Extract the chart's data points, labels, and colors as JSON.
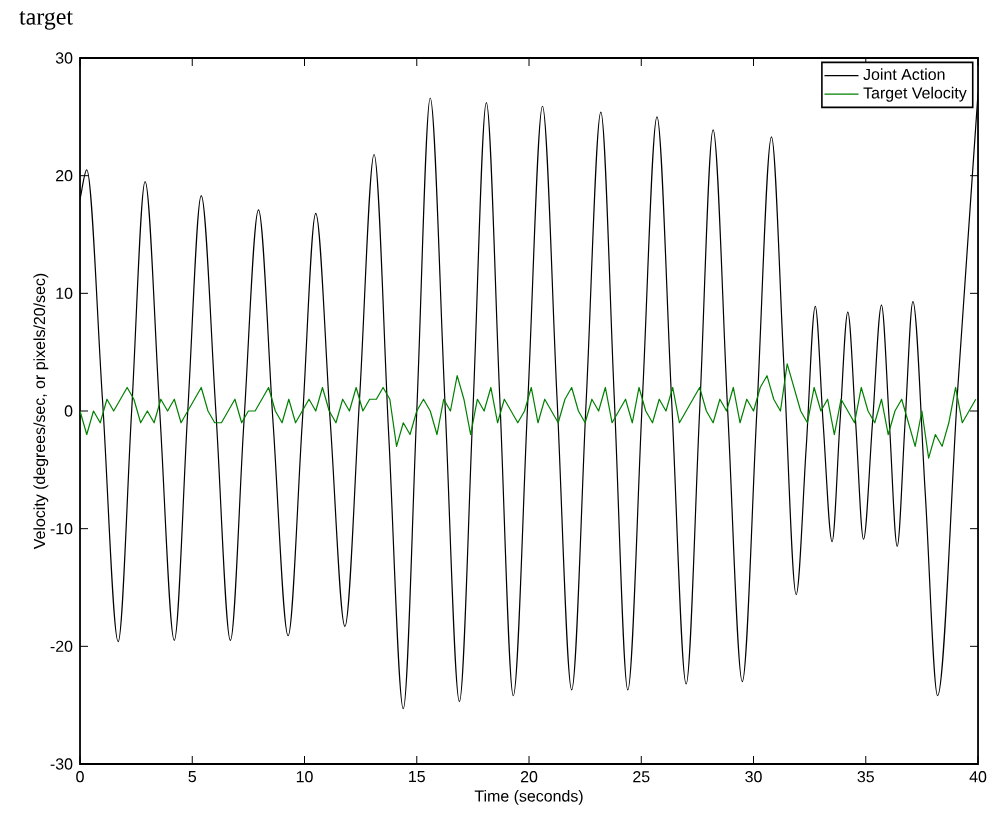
{
  "chart_data": {
    "type": "line",
    "xlabel": "Time (seconds)",
    "ylabel": "Velocity (degrees/sec, or pixels/20/sec)",
    "annotations": [
      "target"
    ],
    "xlim": [
      0,
      40
    ],
    "ylim": [
      -30,
      30
    ],
    "xticks": [
      0,
      5,
      10,
      15,
      20,
      25,
      30,
      35,
      40
    ],
    "yticks": [
      -30,
      -20,
      -10,
      0,
      10,
      20,
      30
    ],
    "grid": false,
    "legend": "top right",
    "line_style": "solid",
    "marker": "none",
    "series": [
      {
        "name": "Joint Action",
        "color": "#000000",
        "x": [
          0,
          0.3,
          1.0,
          1.7,
          2.3,
          2.9,
          3.55,
          4.2,
          4.8,
          5.4,
          6.05,
          6.7,
          7.3,
          7.95,
          8.6,
          9.27,
          9.9,
          10.5,
          11.15,
          11.8,
          12.45,
          13.1,
          13.75,
          14.4,
          15.0,
          15.6,
          16.25,
          16.9,
          17.5,
          18.1,
          18.7,
          19.3,
          19.95,
          20.6,
          21.25,
          21.9,
          22.55,
          23.2,
          23.8,
          24.4,
          25.05,
          25.7,
          26.35,
          27.0,
          27.6,
          28.2,
          28.85,
          29.5,
          30.15,
          30.8,
          31.35,
          31.9,
          32.35,
          32.75,
          33.1,
          33.5,
          33.85,
          34.2,
          34.55,
          34.9,
          35.3,
          35.7,
          36.05,
          36.4,
          36.75,
          37.1,
          37.65,
          38.2,
          39.1,
          40.0
        ],
        "values": [
          18,
          20.5,
          1,
          -19.6,
          0,
          19.5,
          0,
          -19.5,
          0,
          18.3,
          0,
          -19.5,
          -1,
          17.1,
          -1,
          -19.1,
          -1,
          16.8,
          -1,
          -18.3,
          1,
          21.8,
          -2,
          -25.3,
          0,
          26.6,
          1,
          -24.7,
          0,
          26.2,
          1,
          -24.2,
          1,
          25.9,
          1,
          -23.7,
          1,
          25.4,
          1,
          -23.7,
          1,
          25.0,
          1,
          -23.2,
          0,
          23.9,
          0,
          -23.0,
          0,
          23.3,
          4,
          -15.6,
          -3,
          8.9,
          -1,
          -11.1,
          -1,
          8.4,
          -1,
          -10.9,
          -1,
          9.0,
          -1,
          -11.5,
          -1,
          9.3,
          -7,
          -24.2,
          2,
          27
        ]
      },
      {
        "name": "Target Velocity",
        "color": "#008000",
        "x": [
          0,
          0.3,
          0.6,
          0.9,
          1.2,
          1.5,
          1.8,
          2.1,
          2.4,
          2.7,
          3.0,
          3.3,
          3.6,
          3.9,
          4.2,
          4.5,
          4.8,
          5.1,
          5.4,
          5.7,
          6.0,
          6.3,
          6.6,
          6.9,
          7.2,
          7.5,
          7.8,
          8.1,
          8.4,
          8.7,
          9.0,
          9.3,
          9.6,
          9.9,
          10.2,
          10.5,
          10.8,
          11.1,
          11.4,
          11.7,
          12.0,
          12.3,
          12.6,
          12.9,
          13.2,
          13.5,
          13.8,
          14.1,
          14.4,
          14.7,
          15.0,
          15.3,
          15.6,
          15.9,
          16.2,
          16.5,
          16.8,
          17.1,
          17.4,
          17.7,
          18.0,
          18.3,
          18.6,
          18.9,
          19.2,
          19.5,
          19.8,
          20.1,
          20.4,
          20.7,
          21.0,
          21.3,
          21.6,
          21.9,
          22.2,
          22.5,
          22.8,
          23.1,
          23.4,
          23.7,
          24.0,
          24.3,
          24.6,
          24.9,
          25.2,
          25.5,
          25.8,
          26.1,
          26.4,
          26.7,
          27.0,
          27.3,
          27.6,
          27.9,
          28.2,
          28.5,
          28.8,
          29.1,
          29.4,
          29.7,
          30.0,
          30.3,
          30.6,
          30.9,
          31.2,
          31.5,
          31.8,
          32.1,
          32.4,
          32.7,
          33.0,
          33.3,
          33.6,
          33.9,
          34.2,
          34.5,
          34.8,
          35.1,
          35.4,
          35.7,
          36.0,
          36.3,
          36.6,
          36.9,
          37.2,
          37.5,
          37.8,
          38.1,
          38.4,
          38.7,
          39.0,
          39.3,
          39.6,
          39.9
        ],
        "values": [
          0,
          -2,
          0,
          -1,
          1,
          0,
          1,
          2,
          1,
          -1,
          0,
          -1,
          1,
          0,
          1,
          -1,
          0,
          1,
          2,
          0,
          -1,
          -1,
          0,
          1,
          -1,
          0,
          0,
          1,
          2,
          0,
          -1,
          1,
          -1,
          0,
          1,
          0,
          2,
          0,
          -1,
          1,
          0,
          2,
          0,
          1,
          1,
          2,
          1,
          -3,
          -1,
          -2,
          0,
          1,
          0,
          -2,
          1,
          0,
          3,
          1,
          -2,
          1,
          0,
          2,
          -1,
          1,
          0,
          -1,
          0,
          2,
          -1,
          1,
          0,
          -1,
          1,
          2,
          0,
          -1,
          1,
          0,
          2,
          -1,
          0,
          1,
          -1,
          2,
          0,
          -1,
          1,
          0,
          2,
          -1,
          0,
          1,
          2,
          0,
          -1,
          1,
          0,
          2,
          -1,
          1,
          0,
          2,
          3,
          1,
          0,
          4,
          2,
          0,
          -1,
          2,
          0,
          1,
          -2,
          1,
          0,
          -1,
          2,
          0,
          -1,
          1,
          -2,
          0,
          1,
          -1,
          -3,
          0,
          -4,
          -2,
          -3,
          -1,
          2,
          -1,
          0,
          1
        ]
      }
    ]
  }
}
